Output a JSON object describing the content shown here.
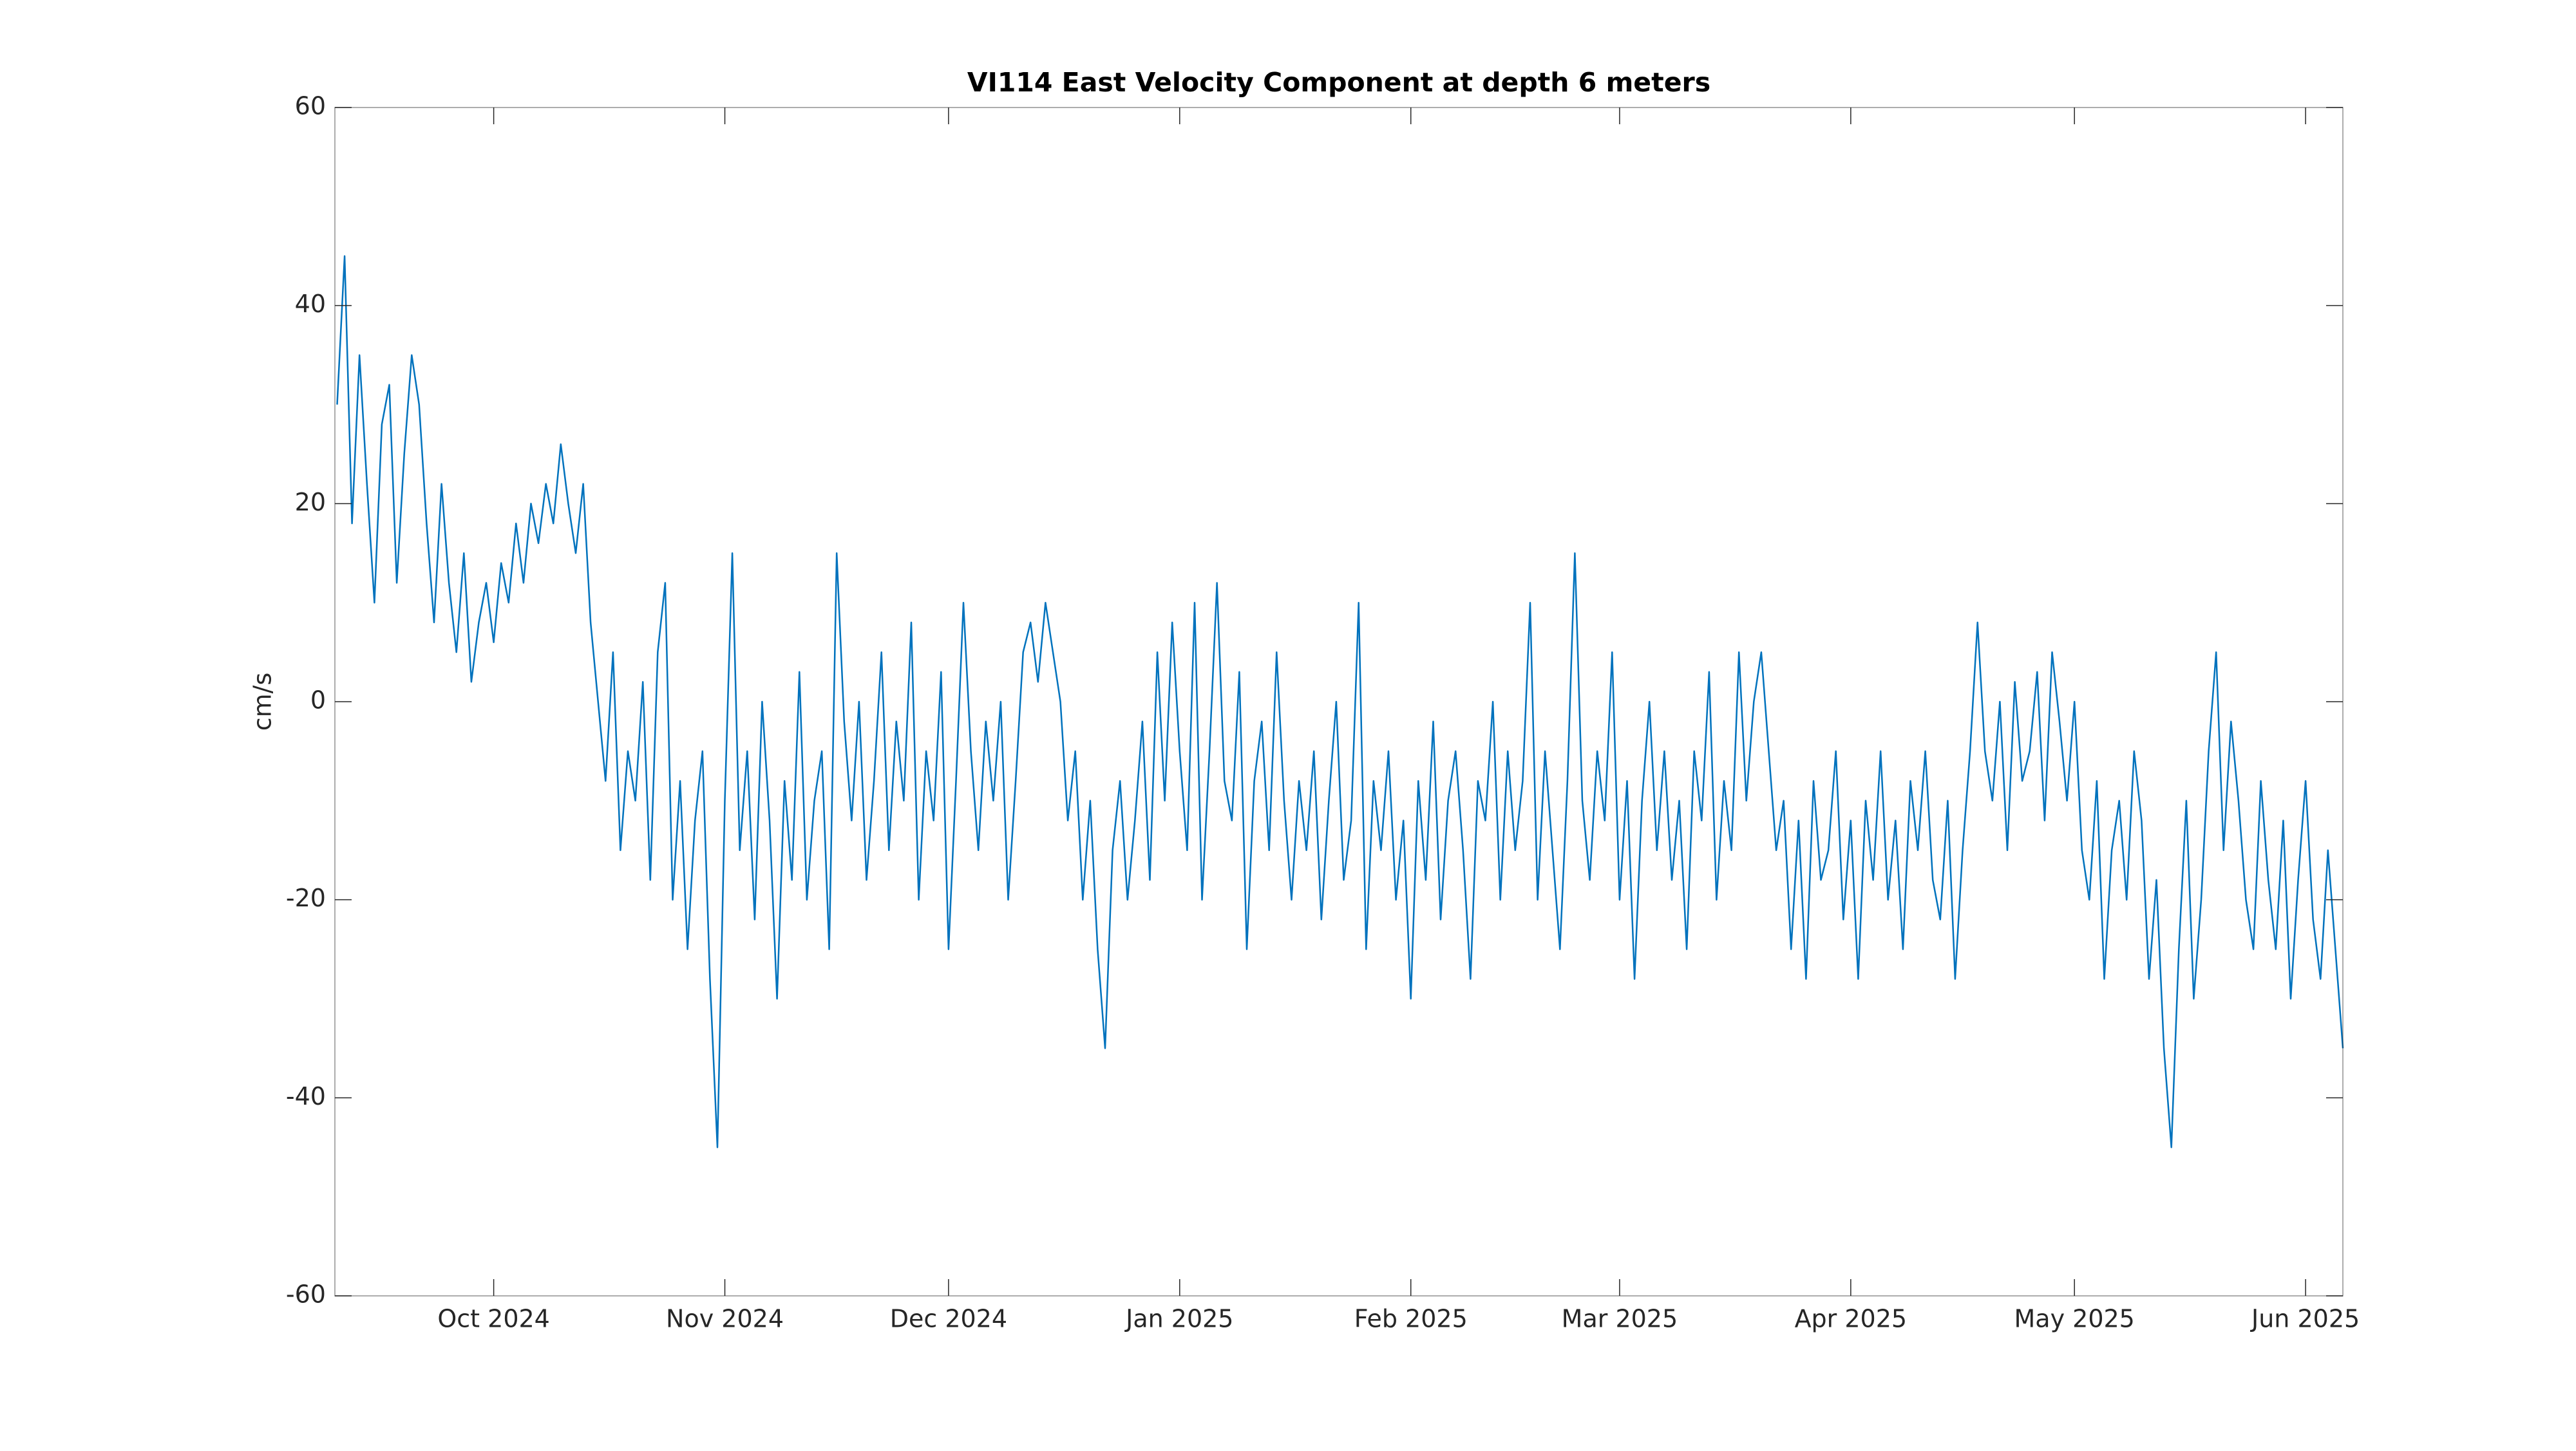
{
  "chart_data": {
    "type": "line",
    "title": "VI114 East Velocity Component at depth 6 meters",
    "y_label": "cm/s",
    "xlim": [
      8.7,
      278
    ],
    "xticks": [
      {
        "value": 30,
        "label": "Oct 2024"
      },
      {
        "value": 61,
        "label": "Nov 2024"
      },
      {
        "value": 91,
        "label": "Dec 2024"
      },
      {
        "value": 122,
        "label": "Jan 2025"
      },
      {
        "value": 153,
        "label": "Feb 2025"
      },
      {
        "value": 181,
        "label": "Mar 2025"
      },
      {
        "value": 212,
        "label": "Apr 2025"
      },
      {
        "value": 242,
        "label": "May 2025"
      },
      {
        "value": 273,
        "label": "Jun 2025"
      }
    ],
    "ylim": [
      -60,
      60
    ],
    "yticks": [
      -60,
      -40,
      -20,
      0,
      20,
      40,
      60
    ],
    "grid": false,
    "series": [
      {
        "color": "#0072bd",
        "x": [
          9,
          10,
          11,
          12,
          13,
          14,
          15,
          16,
          17,
          18,
          19,
          20,
          21,
          22,
          23,
          24,
          25,
          26,
          27,
          28,
          29,
          30,
          31,
          32,
          33,
          34,
          35,
          36,
          37,
          38,
          39,
          40,
          41,
          42,
          43,
          44,
          45,
          46,
          47,
          48,
          49,
          50,
          51,
          52,
          53,
          54,
          55,
          56,
          57,
          58,
          59,
          60,
          61,
          62,
          63,
          64,
          65,
          66,
          67,
          68,
          69,
          70,
          71,
          72,
          73,
          74,
          75,
          76,
          77,
          78,
          79,
          80,
          81,
          82,
          83,
          84,
          85,
          86,
          87,
          88,
          89,
          90,
          91,
          92,
          93,
          94,
          95,
          96,
          97,
          98,
          99,
          100,
          101,
          102,
          103,
          104,
          105,
          106,
          107,
          108,
          109,
          110,
          111,
          112,
          113,
          114,
          115,
          116,
          117,
          118,
          119,
          120,
          121,
          122,
          123,
          124,
          125,
          126,
          127,
          128,
          129,
          130,
          131,
          132,
          133,
          134,
          135,
          136,
          137,
          138,
          139,
          140,
          141,
          142,
          143,
          144,
          145,
          146,
          147,
          148,
          149,
          150,
          151,
          152,
          153,
          154,
          155,
          156,
          157,
          158,
          159,
          160,
          161,
          162,
          163,
          164,
          165,
          166,
          167,
          168,
          169,
          170,
          171,
          172,
          173,
          174,
          175,
          176,
          177,
          178,
          179,
          180,
          181,
          182,
          183,
          184,
          185,
          186,
          187,
          188,
          189,
          190,
          191,
          192,
          193,
          194,
          195,
          196,
          197,
          198,
          199,
          200,
          201,
          202,
          203,
          204,
          205,
          206,
          207,
          208,
          209,
          210,
          211,
          212,
          213,
          214,
          215,
          216,
          217,
          218,
          219,
          220,
          221,
          222,
          223,
          224,
          225,
          226,
          227,
          228,
          229,
          230,
          231,
          232,
          233,
          234,
          235,
          236,
          237,
          238,
          239,
          240,
          241,
          242,
          243,
          244,
          245,
          246,
          247,
          248,
          249,
          250,
          251,
          252,
          253,
          254,
          255,
          256,
          257,
          258,
          259,
          260,
          261,
          262,
          263,
          264,
          265,
          266,
          267,
          268,
          269,
          270,
          271,
          272,
          273,
          274,
          275,
          276,
          277,
          278
        ],
        "values": [
          30,
          45,
          18,
          35,
          22,
          10,
          28,
          32,
          12,
          25,
          35,
          30,
          18,
          8,
          22,
          12,
          5,
          15,
          2,
          8,
          12,
          6,
          14,
          10,
          18,
          12,
          20,
          16,
          22,
          18,
          26,
          20,
          15,
          22,
          8,
          0,
          -8,
          5,
          -15,
          -5,
          -10,
          2,
          -18,
          5,
          12,
          -20,
          -8,
          -25,
          -12,
          -5,
          -28,
          -45,
          -10,
          15,
          -15,
          -5,
          -22,
          0,
          -12,
          -30,
          -8,
          -18,
          3,
          -20,
          -10,
          -5,
          -25,
          15,
          -2,
          -12,
          0,
          -18,
          -8,
          5,
          -15,
          -2,
          -10,
          8,
          -20,
          -5,
          -12,
          3,
          -25,
          -8,
          10,
          -5,
          -15,
          -2,
          -10,
          0,
          -20,
          -8,
          5,
          8,
          2,
          10,
          5,
          0,
          -12,
          -5,
          -20,
          -10,
          -25,
          -35,
          -15,
          -8,
          -20,
          -12,
          -2,
          -18,
          5,
          -10,
          8,
          -5,
          -15,
          10,
          -20,
          -5,
          12,
          -8,
          -12,
          3,
          -25,
          -8,
          -2,
          -15,
          5,
          -10,
          -20,
          -8,
          -15,
          -5,
          -22,
          -10,
          0,
          -18,
          -12,
          10,
          -25,
          -8,
          -15,
          -5,
          -20,
          -12,
          -30,
          -8,
          -18,
          -2,
          -22,
          -10,
          -5,
          -15,
          -28,
          -8,
          -12,
          0,
          -20,
          -5,
          -15,
          -8,
          10,
          -20,
          -5,
          -15,
          -25,
          -8,
          15,
          -10,
          -18,
          -5,
          -12,
          5,
          -20,
          -8,
          -28,
          -10,
          0,
          -15,
          -5,
          -18,
          -10,
          -25,
          -5,
          -12,
          3,
          -20,
          -8,
          -15,
          5,
          -10,
          0,
          5,
          -5,
          -15,
          -10,
          -25,
          -12,
          -28,
          -8,
          -18,
          -15,
          -5,
          -22,
          -12,
          -28,
          -10,
          -18,
          -5,
          -20,
          -12,
          -25,
          -8,
          -15,
          -5,
          -18,
          -22,
          -10,
          -28,
          -15,
          -5,
          8,
          -5,
          -10,
          0,
          -15,
          2,
          -8,
          -5,
          3,
          -12,
          5,
          -2,
          -10,
          0,
          -15,
          -20,
          -8,
          -28,
          -15,
          -10,
          -20,
          -5,
          -12,
          -28,
          -18,
          -35,
          -45,
          -25,
          -10,
          -30,
          -20,
          -5,
          5,
          -15,
          -2,
          -10,
          -20,
          -25,
          -8,
          -18,
          -25,
          -12,
          -30,
          -18,
          -8,
          -22,
          -28,
          -15,
          -25,
          -35
        ]
      }
    ]
  }
}
